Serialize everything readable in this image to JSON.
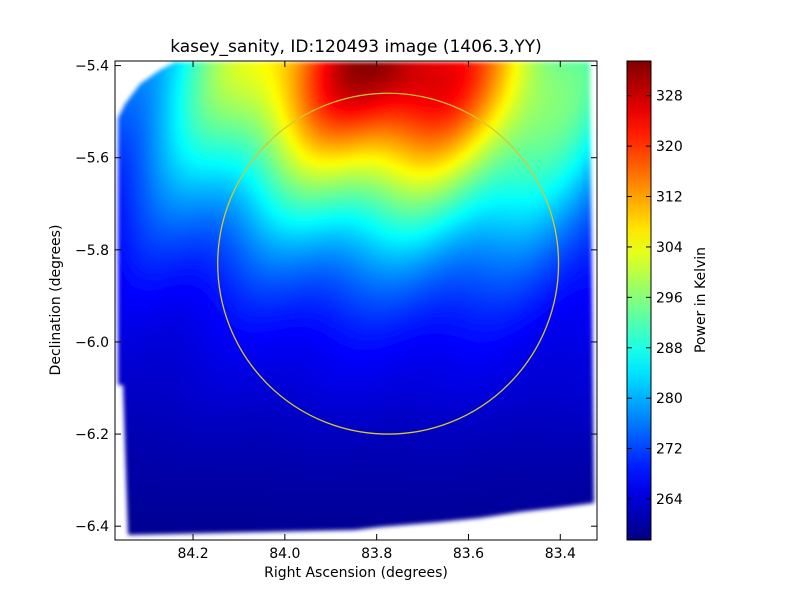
{
  "chart_data": {
    "type": "heatmap",
    "title": "kasey_sanity, ID:120493 image (1406.3,YY)",
    "xlabel": "Right Ascension (degrees)",
    "ylabel": "Declination (degrees)",
    "colorbar_label": "Power in Kelvin",
    "colormap": "jet",
    "xlim": [
      84.37,
      83.32
    ],
    "ylim": [
      -6.43,
      -5.39
    ],
    "x_ticks": [
      {
        "value": 84.2,
        "label": "84.2"
      },
      {
        "value": 84.0,
        "label": "84.0"
      },
      {
        "value": 83.8,
        "label": "83.8"
      },
      {
        "value": 83.6,
        "label": "83.6"
      },
      {
        "value": 83.4,
        "label": "83.4"
      }
    ],
    "y_ticks": [
      {
        "value": -5.4,
        "label": "−5.4"
      },
      {
        "value": -5.6,
        "label": "−5.6"
      },
      {
        "value": -5.8,
        "label": "−5.8"
      },
      {
        "value": -6.0,
        "label": "−6.0"
      },
      {
        "value": -6.2,
        "label": "−6.2"
      },
      {
        "value": -6.4,
        "label": "−6.4"
      }
    ],
    "colorbar_range": [
      257.5,
      333.5
    ],
    "colorbar_ticks": [
      {
        "value": 264,
        "label": "264"
      },
      {
        "value": 272,
        "label": "272"
      },
      {
        "value": 280,
        "label": "280"
      },
      {
        "value": 288,
        "label": "288"
      },
      {
        "value": 296,
        "label": "296"
      },
      {
        "value": 304,
        "label": "304"
      },
      {
        "value": 312,
        "label": "312"
      },
      {
        "value": 320,
        "label": "320"
      },
      {
        "value": 328,
        "label": "328"
      }
    ],
    "hotspot": {
      "ra": 83.77,
      "dec": -5.41,
      "peak_kelvin": 333
    },
    "background_kelvin": 262,
    "overlay_circle": {
      "center_ra": 83.775,
      "center_dec": -5.83,
      "radius_deg": 0.37,
      "color": "#d6c72e"
    }
  }
}
